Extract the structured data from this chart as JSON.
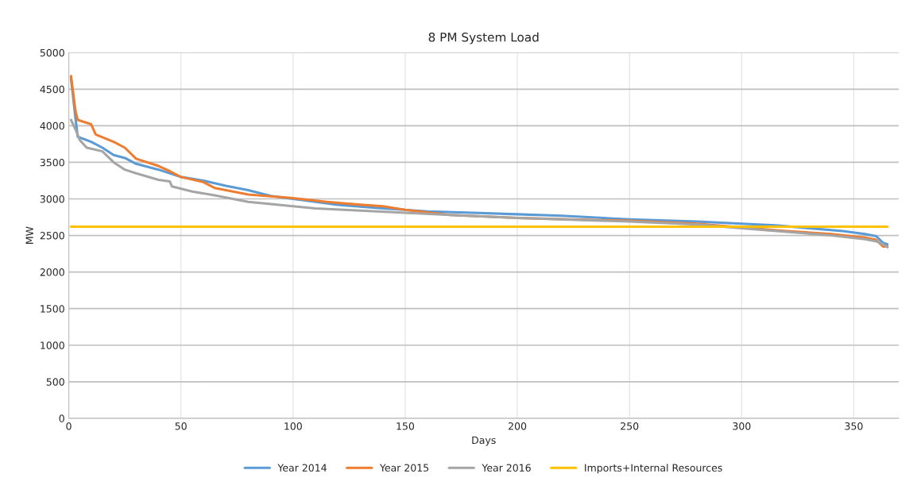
{
  "chart_data": {
    "type": "line",
    "title": "8 PM System Load",
    "xlabel": "Days",
    "ylabel": "MW",
    "xlim": [
      0,
      370
    ],
    "xticks": [
      0,
      50,
      100,
      150,
      200,
      250,
      300,
      350
    ],
    "ylim": [
      0,
      5000
    ],
    "yticks": [
      0,
      500,
      1000,
      1500,
      2000,
      2500,
      3000,
      3500,
      4000,
      4500,
      5000
    ],
    "grid": true,
    "legend": "bottom",
    "marker": "none",
    "line_style": "solid",
    "series": [
      {
        "name": "Year 2014",
        "color": "#5b9bd5",
        "x": [
          1,
          3,
          4,
          10,
          15,
          20,
          25,
          30,
          40,
          50,
          60,
          70,
          80,
          90,
          100,
          120,
          140,
          160,
          180,
          200,
          220,
          250,
          280,
          300,
          315,
          330,
          345,
          355,
          360,
          363,
          365
        ],
        "values": [
          4650,
          4100,
          3850,
          3780,
          3700,
          3600,
          3560,
          3480,
          3400,
          3300,
          3250,
          3180,
          3120,
          3040,
          3000,
          2920,
          2870,
          2830,
          2810,
          2790,
          2770,
          2720,
          2690,
          2660,
          2640,
          2600,
          2560,
          2520,
          2490,
          2400,
          2380
        ]
      },
      {
        "name": "Year 2015",
        "color": "#ed7d31",
        "x": [
          1,
          3,
          4,
          10,
          12,
          20,
          25,
          30,
          40,
          45,
          50,
          60,
          65,
          80,
          100,
          115,
          130,
          140,
          150,
          170,
          200,
          250,
          280,
          300,
          320,
          340,
          355,
          360,
          363,
          365
        ],
        "values": [
          4680,
          4200,
          4080,
          4020,
          3880,
          3780,
          3700,
          3550,
          3450,
          3380,
          3300,
          3230,
          3150,
          3060,
          3010,
          2960,
          2920,
          2900,
          2850,
          2780,
          2740,
          2700,
          2660,
          2610,
          2560,
          2520,
          2470,
          2440,
          2350,
          2350
        ]
      },
      {
        "name": "Year 2016",
        "color": "#a5a5a5",
        "x": [
          1,
          3,
          5,
          8,
          15,
          20,
          25,
          30,
          40,
          45,
          46,
          55,
          65,
          80,
          100,
          110,
          130,
          150,
          170,
          200,
          250,
          280,
          300,
          320,
          340,
          355,
          360,
          363,
          365
        ],
        "values": [
          4080,
          3950,
          3800,
          3700,
          3650,
          3500,
          3400,
          3350,
          3260,
          3240,
          3170,
          3100,
          3050,
          2960,
          2900,
          2870,
          2840,
          2810,
          2780,
          2740,
          2690,
          2650,
          2600,
          2550,
          2500,
          2450,
          2420,
          2380,
          2340
        ]
      },
      {
        "name": "Imports+Internal Resources",
        "color": "#ffc000",
        "x": [
          1,
          365
        ],
        "values": [
          2620,
          2620
        ]
      }
    ]
  }
}
